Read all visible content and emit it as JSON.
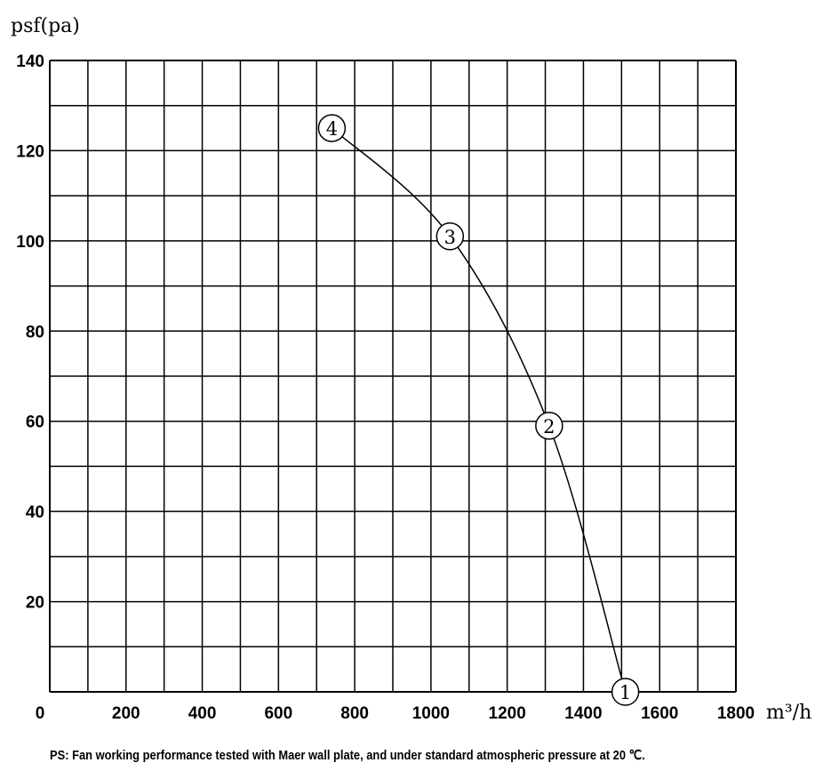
{
  "chart_data": {
    "type": "line",
    "ylabel": "psf(pa)",
    "xlabel": "m³/h",
    "xlim": [
      0,
      1800
    ],
    "ylim": [
      0,
      140
    ],
    "x_ticks": [
      "0",
      "200",
      "400",
      "600",
      "800",
      "1000",
      "1200",
      "1400",
      "1600",
      "1800"
    ],
    "y_ticks": [
      "20",
      "40",
      "60",
      "80",
      "100",
      "120",
      "140"
    ],
    "x_grid_step": 100,
    "y_grid_step": 10,
    "grid": true,
    "series": [
      {
        "points": [
          {
            "x": 740,
            "y": 125
          },
          {
            "x": 1050,
            "y": 101
          },
          {
            "x": 1310,
            "y": 59
          },
          {
            "x": 1510,
            "y": 0
          }
        ]
      }
    ],
    "point_labels": [
      "4",
      "3",
      "2",
      "1"
    ]
  },
  "footnote": "PS: Fan working performance tested with Maer wall plate, and under standard atmospheric pressure at 20 ℃."
}
